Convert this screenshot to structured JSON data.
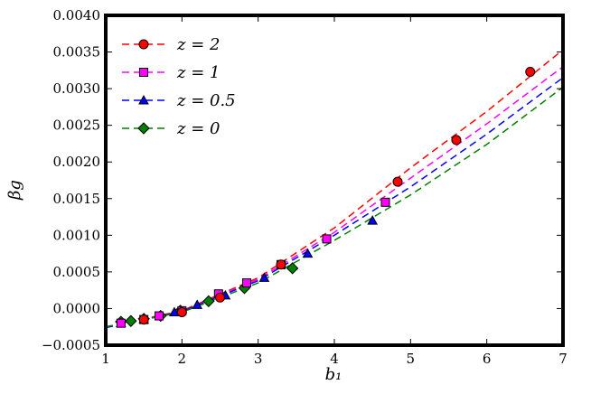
{
  "chart_data": {
    "type": "scatter",
    "xlabel": "b₁",
    "ylabel": "βg",
    "xlim": [
      1,
      7
    ],
    "ylim": [
      -0.0005,
      0.004
    ],
    "xticks": [
      "1",
      "2",
      "3",
      "4",
      "5",
      "6",
      "7"
    ],
    "yticks": [
      "−0.0005",
      "0.0000",
      "0.0005",
      "0.0010",
      "0.0015",
      "0.0020",
      "0.0025",
      "0.0030",
      "0.0035",
      "0.0040"
    ],
    "grid": false,
    "legend_position": "top-left",
    "series": [
      {
        "name": "z = 2",
        "color": "#ff0000",
        "marker": "circle",
        "points": [
          {
            "x": 1.5,
            "y": -0.00015
          },
          {
            "x": 2.0,
            "y": -5e-05
          },
          {
            "x": 2.5,
            "y": 0.00015
          },
          {
            "x": 3.3,
            "y": 0.0006
          },
          {
            "x": 4.83,
            "y": 0.00173
          },
          {
            "x": 5.6,
            "y": 0.0023
          },
          {
            "x": 6.57,
            "y": 0.00323
          }
        ],
        "fit_line": [
          {
            "x": 1.0,
            "y": -0.00025
          },
          {
            "x": 2.0,
            "y": -3e-05
          },
          {
            "x": 3.0,
            "y": 0.00042
          },
          {
            "x": 4.0,
            "y": 0.0011
          },
          {
            "x": 5.0,
            "y": 0.00192
          },
          {
            "x": 6.0,
            "y": 0.00269
          },
          {
            "x": 7.0,
            "y": 0.00353
          }
        ]
      },
      {
        "name": "z = 1",
        "color": "#ff00ff",
        "marker": "square",
        "points": [
          {
            "x": 1.2,
            "y": -0.0002
          },
          {
            "x": 1.5,
            "y": -0.00015
          },
          {
            "x": 1.7,
            "y": -0.0001
          },
          {
            "x": 2.0,
            "y": -3e-05
          },
          {
            "x": 2.48,
            "y": 0.0002
          },
          {
            "x": 2.85,
            "y": 0.00035
          },
          {
            "x": 3.3,
            "y": 0.0006
          },
          {
            "x": 3.9,
            "y": 0.00095
          },
          {
            "x": 4.67,
            "y": 0.00145
          }
        ],
        "fit_line": [
          {
            "x": 1.0,
            "y": -0.00026
          },
          {
            "x": 2.0,
            "y": -4e-05
          },
          {
            "x": 3.0,
            "y": 0.0004
          },
          {
            "x": 4.0,
            "y": 0.00104
          },
          {
            "x": 5.0,
            "y": 0.00178
          },
          {
            "x": 6.0,
            "y": 0.00252
          },
          {
            "x": 7.0,
            "y": 0.0033
          }
        ]
      },
      {
        "name": "z = 0.5",
        "color": "#0000ff",
        "marker": "triangle",
        "points": [
          {
            "x": 1.2,
            "y": -0.0002
          },
          {
            "x": 1.5,
            "y": -0.00015
          },
          {
            "x": 1.9,
            "y": -5e-05
          },
          {
            "x": 2.2,
            "y": 5e-05
          },
          {
            "x": 2.57,
            "y": 0.00018
          },
          {
            "x": 3.08,
            "y": 0.00042
          },
          {
            "x": 3.65,
            "y": 0.00075
          },
          {
            "x": 4.5,
            "y": 0.0012
          }
        ],
        "fit_line": [
          {
            "x": 1.0,
            "y": -0.00026
          },
          {
            "x": 2.0,
            "y": -4e-05
          },
          {
            "x": 3.0,
            "y": 0.00038
          },
          {
            "x": 4.0,
            "y": 0.001
          },
          {
            "x": 5.0,
            "y": 0.00166
          },
          {
            "x": 6.0,
            "y": 0.00238
          },
          {
            "x": 7.0,
            "y": 0.00315
          }
        ]
      },
      {
        "name": "z = 0",
        "color": "#008000",
        "marker": "diamond",
        "points": [
          {
            "x": 1.2,
            "y": -0.00018
          },
          {
            "x": 1.33,
            "y": -0.00017
          },
          {
            "x": 1.5,
            "y": -0.00014
          },
          {
            "x": 1.72,
            "y": -0.0001
          },
          {
            "x": 1.98,
            "y": -3e-05
          },
          {
            "x": 2.35,
            "y": 0.0001
          },
          {
            "x": 2.82,
            "y": 0.00028
          },
          {
            "x": 3.45,
            "y": 0.00055
          }
        ],
        "fit_line": [
          {
            "x": 1.0,
            "y": -0.00025
          },
          {
            "x": 2.0,
            "y": -5e-05
          },
          {
            "x": 3.0,
            "y": 0.00035
          },
          {
            "x": 4.0,
            "y": 0.00093
          },
          {
            "x": 5.0,
            "y": 0.00155
          },
          {
            "x": 6.0,
            "y": 0.00224
          },
          {
            "x": 7.0,
            "y": 0.00302
          }
        ]
      }
    ]
  }
}
